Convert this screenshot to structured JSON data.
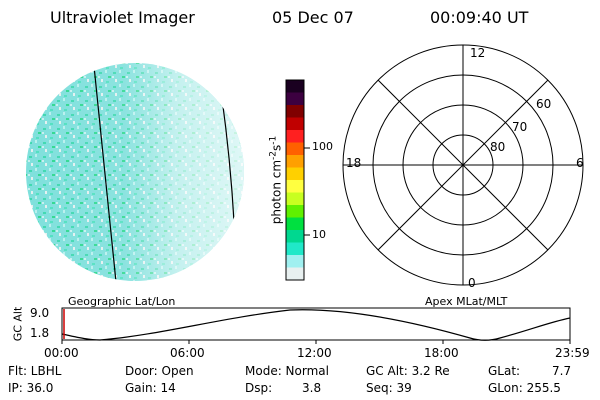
{
  "header": {
    "instrument": "Ultraviolet Imager",
    "date": "05 Dec 07",
    "time": "00:09:40 UT"
  },
  "colorbar": {
    "unit_text": "photon cm",
    "unit_exp1": "-2",
    "unit_mid": "s",
    "unit_exp2": "-1",
    "tick_high": "100",
    "tick_low": "10",
    "colors": [
      "#1a0020",
      "#3c0040",
      "#800000",
      "#c00000",
      "#ff2020",
      "#ff6000",
      "#ffa000",
      "#ffd000",
      "#ffff40",
      "#c8ff20",
      "#60f000",
      "#00e040",
      "#00d890",
      "#20e8c8",
      "#a0f0f0",
      "#e8f0f0"
    ]
  },
  "polar": {
    "mlt_labels": {
      "top": "12",
      "left": "18",
      "right": "6",
      "bottom": "0"
    },
    "lat_labels": [
      "60",
      "70",
      "80"
    ]
  },
  "panels": {
    "left_caption": "Geographic Lat/Lon",
    "right_caption": "Apex MLat/MLT"
  },
  "orbit": {
    "ylabel": "GC Alt",
    "ytick_top": "9.0",
    "ytick_bottom": "1.8",
    "xticks": [
      "00:00",
      "06:00",
      "12:00",
      "18:00",
      "23:59"
    ]
  },
  "status": {
    "filter": "Flt: LBHL",
    "ip": "IP: 36.0",
    "door": "Door: Open",
    "gain": "Gain: 14",
    "mode": "Mode: Normal",
    "dsp_label": "Dsp:",
    "dsp_value": "3.8",
    "gc_alt": "GC Alt: 3.2 Re",
    "seq": "Seq: 39",
    "glat_label": "GLat:",
    "glat_value": "7.7",
    "glon": "GLon: 255.5"
  }
}
